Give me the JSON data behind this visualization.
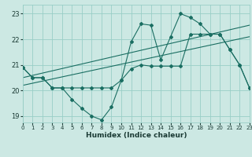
{
  "xlabel": "Humidex (Indice chaleur)",
  "bg_color": "#cce8e3",
  "grid_color": "#99cec7",
  "line_color": "#1a6e62",
  "xlim": [
    0,
    23
  ],
  "ylim": [
    18.75,
    23.35
  ],
  "yticks": [
    19,
    20,
    21,
    22,
    23
  ],
  "xticks": [
    0,
    1,
    2,
    3,
    4,
    5,
    6,
    7,
    8,
    9,
    10,
    11,
    12,
    13,
    14,
    15,
    16,
    17,
    18,
    19,
    20,
    21,
    22,
    23
  ],
  "curve1_x": [
    0,
    1,
    2,
    3,
    4,
    5,
    6,
    7,
    8,
    9,
    10,
    11,
    12,
    13,
    14,
    15,
    16,
    17,
    18,
    19,
    20,
    21,
    22,
    23
  ],
  "curve1_y": [
    20.9,
    20.5,
    20.5,
    20.1,
    20.1,
    19.65,
    19.3,
    19.0,
    18.85,
    19.35,
    20.4,
    21.9,
    22.6,
    22.55,
    21.2,
    22.1,
    23.0,
    22.85,
    22.6,
    22.2,
    22.2,
    21.6,
    21.0,
    20.1
  ],
  "curve2_x": [
    0,
    1,
    2,
    3,
    4,
    5,
    6,
    7,
    8,
    9,
    10,
    11,
    12,
    13,
    14,
    15,
    16,
    17,
    18,
    19,
    20,
    21,
    22,
    23
  ],
  "curve2_y": [
    20.9,
    20.5,
    20.5,
    20.1,
    20.1,
    20.1,
    20.1,
    20.1,
    20.1,
    20.1,
    20.4,
    20.85,
    21.0,
    20.95,
    20.95,
    20.95,
    20.95,
    22.2,
    22.2,
    22.2,
    22.2,
    21.6,
    21.0,
    20.1
  ],
  "reg_line1_x": [
    0,
    23
  ],
  "reg_line1_y": [
    20.5,
    22.55
  ],
  "reg_line2_x": [
    0,
    23
  ],
  "reg_line2_y": [
    20.2,
    22.1
  ]
}
